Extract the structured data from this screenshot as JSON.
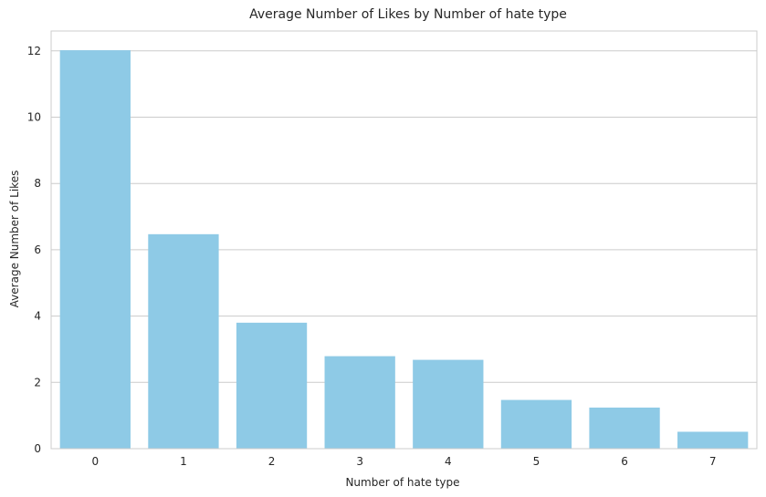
{
  "chart_data": {
    "type": "bar",
    "title": "Average Number of Likes by Number of hate type",
    "xlabel": "Number of hate type",
    "ylabel": "Average Number of Likes",
    "categories": [
      "0",
      "1",
      "2",
      "3",
      "4",
      "5",
      "6",
      "7"
    ],
    "values": [
      12.02,
      6.47,
      3.8,
      2.79,
      2.68,
      1.47,
      1.24,
      0.51
    ],
    "ylim": [
      0,
      12.6
    ],
    "yticks": [
      "0",
      "2",
      "4",
      "6",
      "8",
      "10",
      "12"
    ],
    "grid": true,
    "bar_color": "#8ecae6",
    "grid_color": "#cccccc",
    "text_color": "#262626"
  }
}
